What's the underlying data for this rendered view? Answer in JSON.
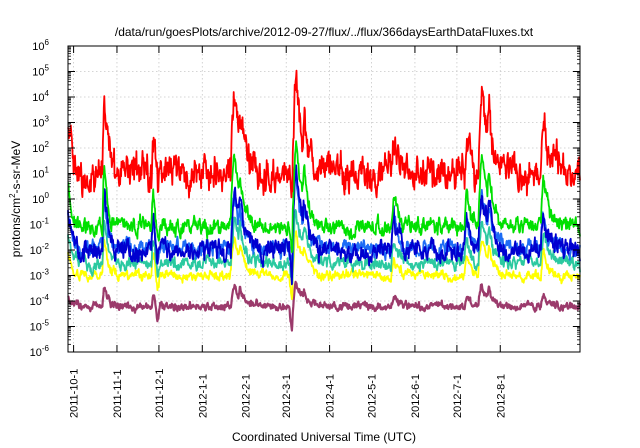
{
  "chart_data": {
    "type": "line",
    "title": "/data/run/goesPlots/archive/2012-09-27/flux/../flux/366daysEarthDataFluxes.txt",
    "xlabel": "Coordinated Universal Time (UTC)",
    "ylabel_parts": [
      "protons/cm",
      "2",
      "-s-sr-MeV"
    ],
    "yscale": "log",
    "ylim": [
      1e-06,
      1000000.0
    ],
    "xlim": [
      "2011-09-27",
      "2012-09-27"
    ],
    "grid": true,
    "y_ticks": [
      {
        "value": 1e-06,
        "base": "10",
        "exp": "-6"
      },
      {
        "value": 1e-05,
        "base": "10",
        "exp": "-5"
      },
      {
        "value": 0.0001,
        "base": "10",
        "exp": "-4"
      },
      {
        "value": 0.001,
        "base": "10",
        "exp": "-3"
      },
      {
        "value": 0.01,
        "base": "10",
        "exp": "-2"
      },
      {
        "value": 0.1,
        "base": "10",
        "exp": "-1"
      },
      {
        "value": 1.0,
        "base": "10",
        "exp": "0"
      },
      {
        "value": 10.0,
        "base": "10",
        "exp": "1"
      },
      {
        "value": 100.0,
        "base": "10",
        "exp": "2"
      },
      {
        "value": 1000.0,
        "base": "10",
        "exp": "3"
      },
      {
        "value": 10000.0,
        "base": "10",
        "exp": "4"
      },
      {
        "value": 100000.0,
        "base": "10",
        "exp": "5"
      },
      {
        "value": 1000000.0,
        "base": "10",
        "exp": "6"
      }
    ],
    "x_ticks": [
      "2011-10-1",
      "2011-11-1",
      "2011-12-1",
      "2012-1-1",
      "2012-2-1",
      "2012-3-1",
      "2012-4-1",
      "2012-5-1",
      "2012-6-1",
      "2012-7-1",
      "2012-8-1"
    ],
    "series": [
      {
        "color": "#9b3a6b",
        "baseline": 6e-05,
        "noise_dex": 0.12,
        "event_gain": 0.25
      },
      {
        "color": "#ffff00",
        "baseline": 0.001,
        "noise_dex": 0.15,
        "event_gain": 0.45
      },
      {
        "color": "#2bc9a0",
        "baseline": 0.003,
        "noise_dex": 0.2,
        "event_gain": 0.55
      },
      {
        "color": "#1e6cf5",
        "baseline": 0.012,
        "noise_dex": 0.25,
        "event_gain": 0.7
      },
      {
        "color": "#0000d0",
        "baseline": 0.01,
        "noise_dex": 0.3,
        "event_gain": 0.8
      },
      {
        "color": "#00e000",
        "baseline": 0.08,
        "noise_dex": 0.25,
        "event_gain": 0.85
      },
      {
        "color": "#ff0000",
        "baseline": 10,
        "noise_dex": 0.55,
        "event_gain": 0.95
      }
    ],
    "events": [
      {
        "date": "2011-09-27",
        "peak": 1000.0,
        "width_days": 2
      },
      {
        "date": "2011-10-23",
        "peak": 10000.0,
        "width_days": 2
      },
      {
        "date": "2011-11-27",
        "peak": 500.0,
        "width_days": 2
      },
      {
        "date": "2012-01-24",
        "peak": 10000.0,
        "width_days": 4
      },
      {
        "date": "2012-01-28",
        "peak": 3000.0,
        "width_days": 3
      },
      {
        "date": "2012-03-08",
        "peak": 80000.0,
        "width_days": 4
      },
      {
        "date": "2012-03-14",
        "peak": 3000.0,
        "width_days": 3
      },
      {
        "date": "2012-05-17",
        "peak": 300.0,
        "width_days": 3
      },
      {
        "date": "2012-07-08",
        "peak": 500.0,
        "width_days": 2
      },
      {
        "date": "2012-07-19",
        "peak": 10000.0,
        "width_days": 4
      },
      {
        "date": "2012-07-24",
        "peak": 3000.0,
        "width_days": 3
      },
      {
        "date": "2012-09-01",
        "peak": 1000.0,
        "width_days": 3
      }
    ],
    "gaps": [
      {
        "date": "2011-11-30",
        "width_days": 2
      },
      {
        "date": "2012-03-05",
        "width_days": 2
      }
    ]
  }
}
